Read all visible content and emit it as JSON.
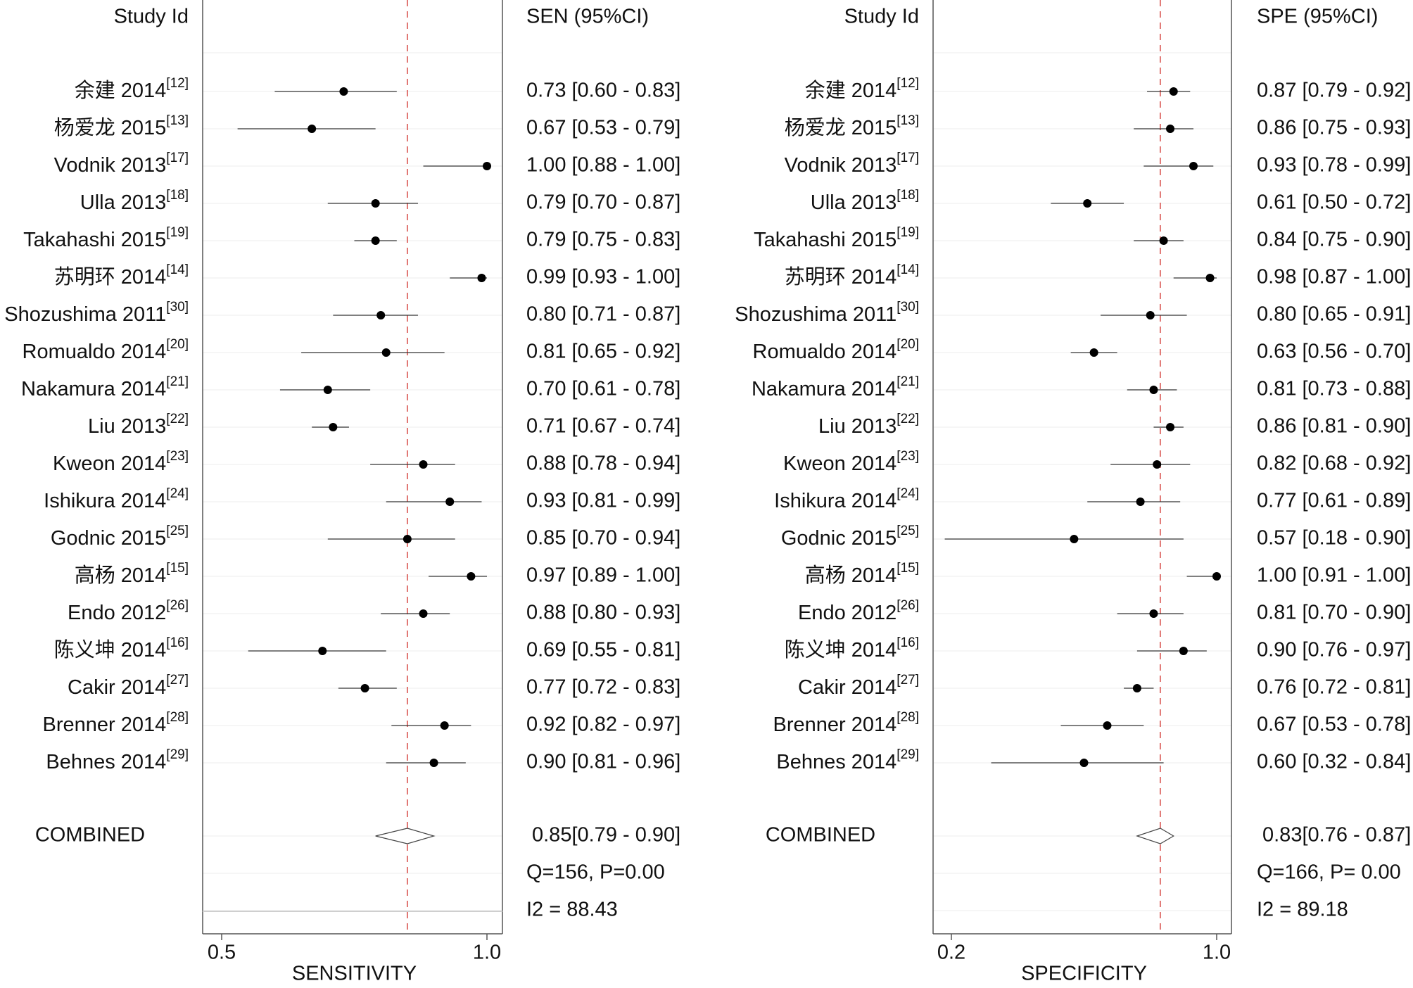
{
  "chart_data": [
    {
      "type": "forest",
      "study_header": "Study Id",
      "estimate_header": "SEN (95%CI)",
      "xlabel": "SENSITIVITY",
      "xlim": [
        0.47,
        1.03
      ],
      "x_ticks": [
        0.5,
        1.0
      ],
      "x_tick_labels": [
        "0.5",
        "1.0"
      ],
      "reference_line": 0.85,
      "studies": [
        {
          "name": "余建 2014",
          "ref": "[12]",
          "value": 0.73,
          "lo": 0.6,
          "hi": 0.83,
          "text": "0.73 [0.60 - 0.83]"
        },
        {
          "name": "杨爱龙 2015",
          "ref": "[13]",
          "value": 0.67,
          "lo": 0.53,
          "hi": 0.79,
          "text": "0.67 [0.53 - 0.79]"
        },
        {
          "name": "Vodnik 2013",
          "ref": "[17]",
          "value": 1.0,
          "lo": 0.88,
          "hi": 1.0,
          "text": "1.00 [0.88 - 1.00]"
        },
        {
          "name": "Ulla 2013",
          "ref": "[18]",
          "value": 0.79,
          "lo": 0.7,
          "hi": 0.87,
          "text": "0.79 [0.70 - 0.87]"
        },
        {
          "name": "Takahashi 2015",
          "ref": "[19]",
          "value": 0.79,
          "lo": 0.75,
          "hi": 0.83,
          "text": "0.79 [0.75 - 0.83]"
        },
        {
          "name": "苏明环 2014",
          "ref": "[14]",
          "value": 0.99,
          "lo": 0.93,
          "hi": 1.0,
          "text": "0.99 [0.93 - 1.00]"
        },
        {
          "name": "Shozushima 2011",
          "ref": "[30]",
          "value": 0.8,
          "lo": 0.71,
          "hi": 0.87,
          "text": "0.80 [0.71 - 0.87]"
        },
        {
          "name": "Romualdo 2014",
          "ref": "[20]",
          "value": 0.81,
          "lo": 0.65,
          "hi": 0.92,
          "text": "0.81 [0.65 - 0.92]"
        },
        {
          "name": "Nakamura 2014",
          "ref": "[21]",
          "value": 0.7,
          "lo": 0.61,
          "hi": 0.78,
          "text": "0.70 [0.61 - 0.78]"
        },
        {
          "name": "Liu 2013",
          "ref": "[22]",
          "value": 0.71,
          "lo": 0.67,
          "hi": 0.74,
          "text": "0.71 [0.67 - 0.74]"
        },
        {
          "name": "Kweon 2014",
          "ref": "[23]",
          "value": 0.88,
          "lo": 0.78,
          "hi": 0.94,
          "text": "0.88 [0.78 - 0.94]"
        },
        {
          "name": "Ishikura 2014",
          "ref": "[24]",
          "value": 0.93,
          "lo": 0.81,
          "hi": 0.99,
          "text": "0.93 [0.81 - 0.99]"
        },
        {
          "name": "Godnic 2015",
          "ref": "[25]",
          "value": 0.85,
          "lo": 0.7,
          "hi": 0.94,
          "text": "0.85 [0.70 - 0.94]"
        },
        {
          "name": "高杨 2014",
          "ref": "[15]",
          "value": 0.97,
          "lo": 0.89,
          "hi": 1.0,
          "text": "0.97 [0.89 - 1.00]"
        },
        {
          "name": "Endo 2012",
          "ref": "[26]",
          "value": 0.88,
          "lo": 0.8,
          "hi": 0.93,
          "text": "0.88 [0.80 - 0.93]"
        },
        {
          "name": "陈义坤 2014",
          "ref": "[16]",
          "value": 0.69,
          "lo": 0.55,
          "hi": 0.81,
          "text": "0.69 [0.55 - 0.81]"
        },
        {
          "name": "Cakir 2014",
          "ref": "[27]",
          "value": 0.77,
          "lo": 0.72,
          "hi": 0.83,
          "text": "0.77 [0.72 - 0.83]"
        },
        {
          "name": "Brenner 2014",
          "ref": "[28]",
          "value": 0.92,
          "lo": 0.82,
          "hi": 0.97,
          "text": "0.92 [0.82 - 0.97]"
        },
        {
          "name": "Behnes 2014",
          "ref": "[29]",
          "value": 0.9,
          "lo": 0.81,
          "hi": 0.96,
          "text": "0.90 [0.81 - 0.96]"
        }
      ],
      "combined": {
        "label": "COMBINED",
        "value": 0.85,
        "lo": 0.79,
        "hi": 0.9,
        "text": "0.85[0.79 - 0.90]"
      },
      "q_text": "Q=156, P=0.00",
      "i2_text": "I2 = 88.43"
    },
    {
      "type": "forest",
      "study_header": "Study Id",
      "estimate_header": "SPE (95%CI)",
      "xlabel": "SPECIFICITY",
      "xlim": [
        0.16,
        1.04
      ],
      "x_ticks": [
        0.2,
        1.0
      ],
      "x_tick_labels": [
        "0.2",
        "1.0"
      ],
      "reference_line": 0.83,
      "studies": [
        {
          "name": "余建 2014",
          "ref": "[12]",
          "value": 0.87,
          "lo": 0.79,
          "hi": 0.92,
          "text": "0.87 [0.79 - 0.92]"
        },
        {
          "name": "杨爱龙 2015",
          "ref": "[13]",
          "value": 0.86,
          "lo": 0.75,
          "hi": 0.93,
          "text": "0.86 [0.75 - 0.93]"
        },
        {
          "name": "Vodnik 2013",
          "ref": "[17]",
          "value": 0.93,
          "lo": 0.78,
          "hi": 0.99,
          "text": "0.93 [0.78 - 0.99]"
        },
        {
          "name": "Ulla 2013",
          "ref": "[18]",
          "value": 0.61,
          "lo": 0.5,
          "hi": 0.72,
          "text": "0.61 [0.50 - 0.72]"
        },
        {
          "name": "Takahashi 2015",
          "ref": "[19]",
          "value": 0.84,
          "lo": 0.75,
          "hi": 0.9,
          "text": "0.84 [0.75 - 0.90]"
        },
        {
          "name": "苏明环 2014",
          "ref": "[14]",
          "value": 0.98,
          "lo": 0.87,
          "hi": 1.0,
          "text": "0.98 [0.87 - 1.00]"
        },
        {
          "name": "Shozushima 2011",
          "ref": "[30]",
          "value": 0.8,
          "lo": 0.65,
          "hi": 0.91,
          "text": "0.80 [0.65 - 0.91]"
        },
        {
          "name": "Romualdo 2014",
          "ref": "[20]",
          "value": 0.63,
          "lo": 0.56,
          "hi": 0.7,
          "text": "0.63 [0.56 - 0.70]"
        },
        {
          "name": "Nakamura 2014",
          "ref": "[21]",
          "value": 0.81,
          "lo": 0.73,
          "hi": 0.88,
          "text": "0.81 [0.73 - 0.88]"
        },
        {
          "name": "Liu 2013",
          "ref": "[22]",
          "value": 0.86,
          "lo": 0.81,
          "hi": 0.9,
          "text": "0.86 [0.81 - 0.90]"
        },
        {
          "name": "Kweon 2014",
          "ref": "[23]",
          "value": 0.82,
          "lo": 0.68,
          "hi": 0.92,
          "text": "0.82 [0.68 - 0.92]"
        },
        {
          "name": "Ishikura 2014",
          "ref": "[24]",
          "value": 0.77,
          "lo": 0.61,
          "hi": 0.89,
          "text": "0.77 [0.61 - 0.89]"
        },
        {
          "name": "Godnic 2015",
          "ref": "[25]",
          "value": 0.57,
          "lo": 0.18,
          "hi": 0.9,
          "text": "0.57 [0.18 - 0.90]"
        },
        {
          "name": "高杨 2014",
          "ref": "[15]",
          "value": 1.0,
          "lo": 0.91,
          "hi": 1.0,
          "text": "1.00 [0.91 - 1.00]"
        },
        {
          "name": "Endo 2012",
          "ref": "[26]",
          "value": 0.81,
          "lo": 0.7,
          "hi": 0.9,
          "text": "0.81 [0.70 - 0.90]"
        },
        {
          "name": "陈义坤 2014",
          "ref": "[16]",
          "value": 0.9,
          "lo": 0.76,
          "hi": 0.97,
          "text": "0.90 [0.76 - 0.97]"
        },
        {
          "name": "Cakir 2014",
          "ref": "[27]",
          "value": 0.76,
          "lo": 0.72,
          "hi": 0.81,
          "text": "0.76 [0.72 - 0.81]"
        },
        {
          "name": "Brenner 2014",
          "ref": "[28]",
          "value": 0.67,
          "lo": 0.53,
          "hi": 0.78,
          "text": "0.67 [0.53 - 0.78]"
        },
        {
          "name": "Behnes 2014",
          "ref": "[29]",
          "value": 0.6,
          "lo": 0.32,
          "hi": 0.84,
          "text": "0.60 [0.32 - 0.84]"
        }
      ],
      "combined": {
        "label": "COMBINED",
        "value": 0.83,
        "lo": 0.76,
        "hi": 0.87,
        "text": "0.83[0.76 - 0.87]"
      },
      "q_text": "Q=166, P= 0.00",
      "i2_text": "I2 = 89.18"
    }
  ],
  "colors": {
    "text": "#111111",
    "marker": "#000000",
    "ci_line": "#333333",
    "reference_line": "#d9534f",
    "frame": "#555555",
    "row_grid": "#ececec",
    "diamond_stroke": "#444444"
  }
}
